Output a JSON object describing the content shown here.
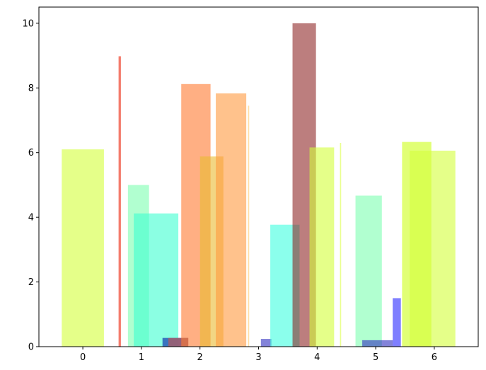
{
  "chart_data": {
    "type": "bar",
    "title": "",
    "xlabel": "",
    "ylabel": "",
    "xlim": [
      -0.75,
      6.75
    ],
    "ylim": [
      0,
      10.5
    ],
    "grid": false,
    "x_ticks": [
      {
        "value": 0,
        "label": "0"
      },
      {
        "value": 1,
        "label": "1"
      },
      {
        "value": 2,
        "label": "2"
      },
      {
        "value": 3,
        "label": "3"
      },
      {
        "value": 4,
        "label": "4"
      },
      {
        "value": 5,
        "label": "5"
      },
      {
        "value": 6,
        "label": "6"
      }
    ],
    "y_ticks": [
      {
        "value": 0,
        "label": "0"
      },
      {
        "value": 2,
        "label": "2"
      },
      {
        "value": 4,
        "label": "4"
      },
      {
        "value": 6,
        "label": "6"
      },
      {
        "value": 8,
        "label": "8"
      },
      {
        "value": 10,
        "label": "10"
      }
    ],
    "bars": [
      {
        "x": 0.0,
        "width": 0.72,
        "value": 6.1,
        "color": "#d4ff3a",
        "alpha": 0.6
      },
      {
        "x": 0.63,
        "width": 0.04,
        "value": 8.98,
        "color": "#f0503c",
        "alpha": 0.75
      },
      {
        "x": 0.95,
        "width": 0.36,
        "value": 5.0,
        "color": "#7dffb0",
        "alpha": 0.6
      },
      {
        "x": 1.25,
        "width": 0.76,
        "value": 4.12,
        "color": "#3dffd0",
        "alpha": 0.6
      },
      {
        "x": 1.58,
        "width": 0.44,
        "value": 0.27,
        "color": "#2a5cb8",
        "alpha": 0.85
      },
      {
        "x": 1.63,
        "width": 0.34,
        "value": 0.27,
        "color": "#b85a5a",
        "alpha": 0.7
      },
      {
        "x": 1.93,
        "width": 0.5,
        "value": 8.12,
        "color": "#ff7a30",
        "alpha": 0.6
      },
      {
        "x": 2.2,
        "width": 0.4,
        "value": 5.88,
        "color": "#eaba30",
        "alpha": 0.6
      },
      {
        "x": 2.53,
        "width": 0.52,
        "value": 7.83,
        "color": "#ff9a40",
        "alpha": 0.6
      },
      {
        "x": 2.83,
        "width": 0.02,
        "value": 7.45,
        "color": "#ffd080",
        "alpha": 0.7
      },
      {
        "x": 3.13,
        "width": 0.18,
        "value": 0.24,
        "color": "#3030c0",
        "alpha": 0.6
      },
      {
        "x": 3.45,
        "width": 0.5,
        "value": 3.77,
        "color": "#3dffe0",
        "alpha": 0.6
      },
      {
        "x": 3.78,
        "width": 0.4,
        "value": 10.0,
        "color": "#8b2020",
        "alpha": 0.58
      },
      {
        "x": 4.08,
        "width": 0.42,
        "value": 6.16,
        "color": "#d4ff3a",
        "alpha": 0.6
      },
      {
        "x": 4.4,
        "width": 0.02,
        "value": 6.3,
        "color": "#e0ff60",
        "alpha": 0.7
      },
      {
        "x": 4.88,
        "width": 0.45,
        "value": 4.67,
        "color": "#7dffb0",
        "alpha": 0.6
      },
      {
        "x": 5.03,
        "width": 0.52,
        "value": 0.2,
        "color": "#3030c0",
        "alpha": 0.6
      },
      {
        "x": 5.36,
        "width": 0.14,
        "value": 1.5,
        "color": "#2a2aff",
        "alpha": 0.6
      },
      {
        "x": 5.7,
        "width": 0.5,
        "value": 6.33,
        "color": "#d4ff3a",
        "alpha": 0.7
      },
      {
        "x": 5.97,
        "width": 0.78,
        "value": 6.06,
        "color": "#d4ff3a",
        "alpha": 0.6
      }
    ]
  }
}
